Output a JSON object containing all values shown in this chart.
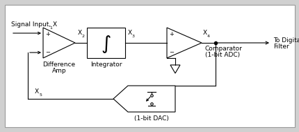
{
  "bg_color": "#d0d0d0",
  "inner_bg": "#ffffff",
  "border_color": "#888888",
  "line_color": "#000000",
  "signal_input_label": "Signal Input, X",
  "signal_input_sub": "1",
  "x2_label": "X",
  "x2_sub": "2",
  "x3_label": "X",
  "x3_sub": "3",
  "x4_label": "X",
  "x4_sub": "4",
  "x5_label": "X",
  "x5_sub": "5",
  "diff_amp_label1": "Difference",
  "diff_amp_label2": "Amp",
  "integrator_label": "Integrator",
  "comparator_label1": "Comparator",
  "comparator_label2": "(1-bit ADC)",
  "dac_label": "(1-bit DAC)",
  "to_digital_label1": "To Digital",
  "to_digital_label2": "Filter",
  "font_size": 6.5
}
